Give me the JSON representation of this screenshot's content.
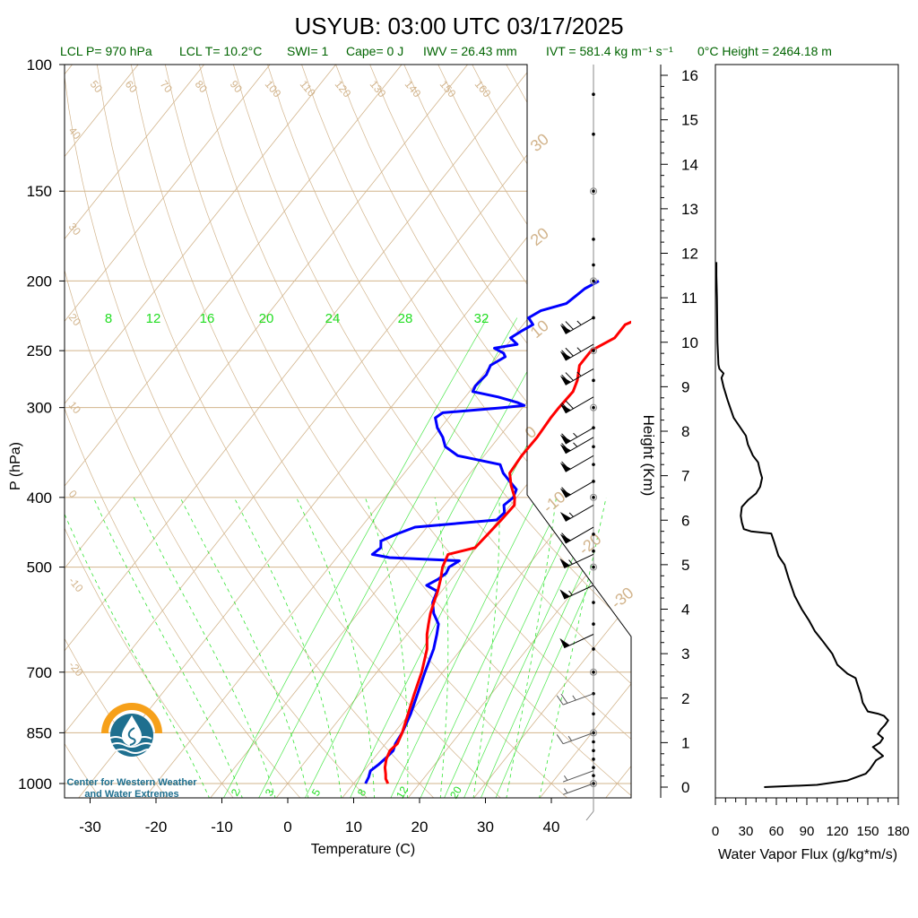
{
  "title": "USYUB: 03:00 UTC 03/17/2025",
  "stats": {
    "lcl_p": "LCL P= 970 hPa",
    "lcl_t": "LCL T= 10.2°C",
    "swi": "SWI= 1",
    "cape": "Cape= 0 J",
    "iwv": "IWV = 26.43 mm",
    "ivt": "IVT = 581.4 kg m⁻¹ s⁻¹",
    "zero_height": "0°C Height = 2464.18 m"
  },
  "logo": {
    "line1": "Center for Western Weather",
    "line2": "and Water Extremes"
  },
  "colors": {
    "temperature": "#ff0000",
    "dewpoint": "#0000ff",
    "isotherm": "#d2b48c",
    "mixing_ratio": "#00dd00",
    "flux": "#000000",
    "stats_text": "#006400"
  },
  "chart_data": [
    {
      "type": "line",
      "name": "skew-t",
      "xlabel": "Temperature (C)",
      "ylabel": "P (hPa)",
      "x_ticks": [
        -30,
        -20,
        -10,
        0,
        10,
        20,
        30,
        40
      ],
      "y_ticks": [
        100,
        150,
        200,
        250,
        300,
        400,
        500,
        700,
        850,
        1000
      ],
      "xlim": [
        -33,
        52
      ],
      "ylim": [
        1050,
        100
      ],
      "y_scale": "log",
      "isotherm_labels": [
        50,
        60,
        70,
        80,
        90,
        100,
        110,
        120,
        130,
        140,
        150,
        160
      ],
      "mixing_ratio_top_labels": [
        8,
        12,
        16,
        20,
        24,
        28,
        32
      ],
      "mixing_ratio_bottom_labels": [
        2,
        3,
        5,
        8,
        12,
        20
      ],
      "theta_labels_left": [
        40,
        30,
        20,
        10,
        0,
        -10,
        -20
      ],
      "theta_labels_right": [
        30,
        20,
        10,
        0,
        -10,
        -20,
        -30
      ],
      "series": [
        {
          "name": "temperature",
          "points": [
            [
              1000,
              15.2
            ],
            [
              985,
              14.3
            ],
            [
              970,
              13.7
            ],
            [
              950,
              12.8
            ],
            [
              925,
              12.0
            ],
            [
              900,
              11.5
            ],
            [
              880,
              11.8
            ],
            [
              850,
              11.2
            ],
            [
              800,
              9.8
            ],
            [
              750,
              8.3
            ],
            [
              700,
              6.8
            ],
            [
              650,
              4.8
            ],
            [
              620,
              3.0
            ],
            [
              600,
              2.0
            ],
            [
              580,
              1.0
            ],
            [
              560,
              0.2
            ],
            [
              540,
              -0.6
            ],
            [
              520,
              -1.6
            ],
            [
              500,
              -2.8
            ],
            [
              480,
              -3.5
            ],
            [
              470,
              -0.2
            ],
            [
              450,
              0.1
            ],
            [
              430,
              0.4
            ],
            [
              410,
              0.6
            ],
            [
              400,
              -0.3
            ],
            [
              385,
              -2.3
            ],
            [
              370,
              -4.0
            ],
            [
              350,
              -4.3
            ],
            [
              330,
              -4.2
            ],
            [
              310,
              -4.5
            ],
            [
              300,
              -4.5
            ],
            [
              285,
              -4.3
            ],
            [
              275,
              -5.0
            ],
            [
              262,
              -6.5
            ],
            [
              250,
              -6.5
            ],
            [
              240,
              -4.5
            ],
            [
              230,
              -4.5
            ],
            [
              222,
              -2.0
            ],
            [
              218,
              -0.5
            ],
            [
              212,
              1.0
            ],
            [
              205,
              2.5
            ],
            [
              200,
              3.5
            ]
          ]
        },
        {
          "name": "dewpoint",
          "points": [
            [
              1000,
              11.8
            ],
            [
              980,
              11.5
            ],
            [
              960,
              11.0
            ],
            [
              940,
              11.5
            ],
            [
              920,
              11.8
            ],
            [
              900,
              12.0
            ],
            [
              880,
              11.5
            ],
            [
              850,
              11.2
            ],
            [
              800,
              10.2
            ],
            [
              750,
              8.8
            ],
            [
              700,
              7.3
            ],
            [
              650,
              5.8
            ],
            [
              620,
              4.5
            ],
            [
              600,
              3.5
            ],
            [
              580,
              1.5
            ],
            [
              560,
              0.0
            ],
            [
              540,
              -0.7
            ],
            [
              530,
              -3.0
            ],
            [
              520,
              -2.0
            ],
            [
              510,
              -1.5
            ],
            [
              500,
              -1.8
            ],
            [
              490,
              -1.0
            ],
            [
              485,
              -12.0
            ],
            [
              480,
              -15.0
            ],
            [
              470,
              -14.5
            ],
            [
              460,
              -15.3
            ],
            [
              450,
              -13.8
            ],
            [
              440,
              -11.8
            ],
            [
              430,
              -0.3
            ],
            [
              420,
              0.0
            ],
            [
              410,
              -1.0
            ],
            [
              400,
              -0.5
            ],
            [
              390,
              -1.0
            ],
            [
              380,
              -3.0
            ],
            [
              370,
              -5.0
            ],
            [
              360,
              -6.5
            ],
            [
              350,
              -14.0
            ],
            [
              340,
              -17.0
            ],
            [
              330,
              -18.5
            ],
            [
              320,
              -20.5
            ],
            [
              310,
              -22.0
            ],
            [
              305,
              -21.5
            ],
            [
              300,
              -13.0
            ],
            [
              298,
              -10.0
            ],
            [
              295,
              -11.5
            ],
            [
              290,
              -15.0
            ],
            [
              285,
              -19.5
            ],
            [
              280,
              -19.8
            ],
            [
              270,
              -19.5
            ],
            [
              262,
              -20.0
            ],
            [
              255,
              -18.8
            ],
            [
              252,
              -19.5
            ],
            [
              248,
              -21.5
            ],
            [
              245,
              -18.5
            ],
            [
              240,
              -20.3
            ],
            [
              235,
              -19.5
            ],
            [
              230,
              -18.5
            ],
            [
              225,
              -20.0
            ],
            [
              220,
              -19.0
            ],
            [
              215,
              -16.0
            ],
            [
              210,
              -15.5
            ],
            [
              205,
              -15.0
            ],
            [
              200,
              -13.8
            ]
          ]
        },
        {
          "name": "wind_barbs",
          "points": [
            [
              1000,
              5
            ],
            [
              960,
              5
            ],
            [
              850,
              15
            ],
            [
              750,
              25
            ],
            [
              620,
              50
            ],
            [
              530,
              55
            ],
            [
              480,
              55
            ],
            [
              440,
              60
            ],
            [
              410,
              55
            ],
            [
              380,
              60
            ],
            [
              350,
              60
            ],
            [
              330,
              65
            ],
            [
              320,
              65
            ],
            [
              290,
              70
            ],
            [
              265,
              75
            ],
            [
              245,
              75
            ],
            [
              225,
              75
            ]
          ]
        }
      ]
    },
    {
      "type": "line",
      "name": "water-vapor-flux",
      "xlabel": "Water Vapor Flux (g/kg*m/s)",
      "ylabel": "Height (Km)",
      "x_ticks": [
        0,
        30,
        60,
        90,
        120,
        150,
        180
      ],
      "y_ticks": [
        0,
        1,
        2,
        3,
        4,
        5,
        6,
        7,
        8,
        9,
        10,
        11,
        12,
        13,
        14,
        15,
        16
      ],
      "xlim": [
        0,
        180
      ],
      "ylim": [
        -0.2,
        16.2
      ],
      "points": [
        [
          48,
          0.0
        ],
        [
          100,
          0.05
        ],
        [
          130,
          0.15
        ],
        [
          148,
          0.3
        ],
        [
          152,
          0.4
        ],
        [
          155,
          0.5
        ],
        [
          158,
          0.6
        ],
        [
          165,
          0.7
        ],
        [
          160,
          0.8
        ],
        [
          155,
          0.9
        ],
        [
          162,
          1.0
        ],
        [
          165,
          1.1
        ],
        [
          160,
          1.2
        ],
        [
          163,
          1.3
        ],
        [
          167,
          1.4
        ],
        [
          170,
          1.5
        ],
        [
          166,
          1.6
        ],
        [
          160,
          1.65
        ],
        [
          150,
          1.7
        ],
        [
          145,
          1.9
        ],
        [
          143,
          2.1
        ],
        [
          140,
          2.3
        ],
        [
          138,
          2.45
        ],
        [
          130,
          2.55
        ],
        [
          120,
          2.75
        ],
        [
          115,
          3.0
        ],
        [
          105,
          3.3
        ],
        [
          98,
          3.5
        ],
        [
          92,
          3.75
        ],
        [
          85,
          4.0
        ],
        [
          78,
          4.3
        ],
        [
          72,
          4.7
        ],
        [
          68,
          5.0
        ],
        [
          62,
          5.2
        ],
        [
          58,
          5.5
        ],
        [
          55,
          5.7
        ],
        [
          35,
          5.75
        ],
        [
          28,
          5.8
        ],
        [
          26,
          5.95
        ],
        [
          25,
          6.1
        ],
        [
          26,
          6.3
        ],
        [
          32,
          6.45
        ],
        [
          40,
          6.6
        ],
        [
          44,
          6.75
        ],
        [
          46,
          6.95
        ],
        [
          44,
          7.1
        ],
        [
          42,
          7.3
        ],
        [
          37,
          7.45
        ],
        [
          32,
          7.7
        ],
        [
          30,
          7.9
        ],
        [
          24,
          8.1
        ],
        [
          18,
          8.3
        ],
        [
          15,
          8.5
        ],
        [
          12,
          8.7
        ],
        [
          8,
          9.0
        ],
        [
          6,
          9.2
        ],
        [
          8,
          9.3
        ],
        [
          4,
          9.4
        ],
        [
          3,
          9.5
        ],
        [
          2,
          10.0
        ],
        [
          1.5,
          11.0
        ],
        [
          1,
          11.5
        ],
        [
          1,
          11.8
        ]
      ]
    }
  ]
}
